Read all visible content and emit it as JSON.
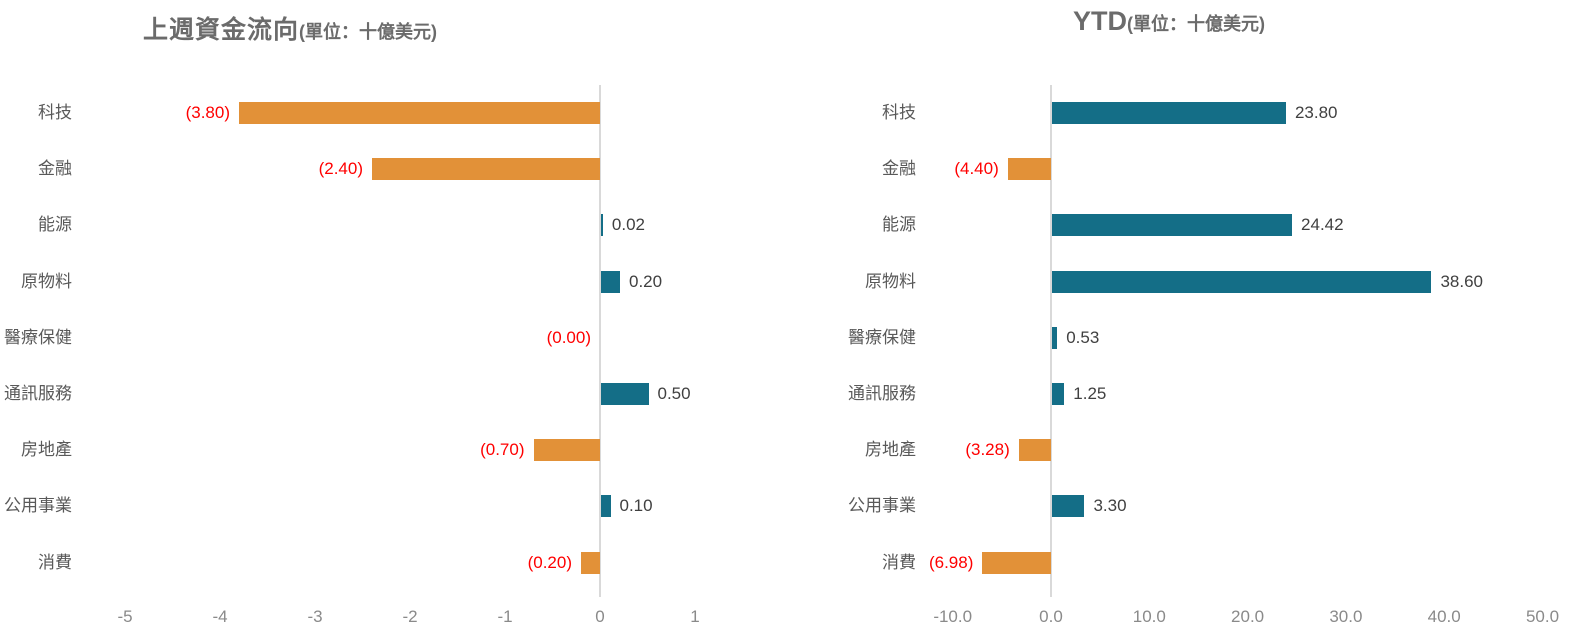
{
  "colors": {
    "bar_positive": "#146e87",
    "bar_negative": "#e29138",
    "negative_value_text": "#ff0000",
    "positive_value_text": "#404040",
    "zero_line": "#d9d9d9",
    "category_text": "#595959",
    "axis_text": "#8a8a8a",
    "title_text": "#6b6b6b"
  },
  "chart_data": [
    {
      "type": "bar",
      "orientation": "horizontal",
      "title": "上週資金流向",
      "title_unit": "(單位：十億美元)",
      "legend": "none",
      "grid": "zero-line-only",
      "categories": [
        "科技",
        "金融",
        "能源",
        "原物料",
        "醫療保健",
        "通訊服務",
        "房地產",
        "公用事業",
        "消費"
      ],
      "values": [
        -3.8,
        -2.4,
        0.02,
        0.2,
        -0.0,
        0.5,
        -0.7,
        0.1,
        -0.2
      ],
      "value_labels": [
        "(3.80)",
        "(2.40)",
        "0.02",
        "0.20",
        "(0.00)",
        "0.50",
        "(0.70)",
        "0.10",
        "(0.20)"
      ],
      "xtick_values": [
        -5,
        -4,
        -3,
        -2,
        -1,
        0,
        1
      ],
      "xtick_labels": [
        "-5",
        "-4",
        "-3",
        "-2",
        "-1",
        "0",
        "1"
      ],
      "xlim": [
        -5.35,
        1.35
      ]
    },
    {
      "type": "bar",
      "orientation": "horizontal",
      "title": "YTD",
      "title_unit": "(單位：十億美元)",
      "legend": "none",
      "grid": "zero-line-only",
      "categories": [
        "科技",
        "金融",
        "能源",
        "原物料",
        "醫療保健",
        "通訊服務",
        "房地產",
        "公用事業",
        "消費"
      ],
      "values": [
        23.8,
        -4.4,
        24.42,
        38.6,
        0.53,
        1.25,
        -3.28,
        3.3,
        -6.98
      ],
      "value_labels": [
        "23.80",
        "(4.40)",
        "24.42",
        "38.60",
        "0.53",
        "1.25",
        "(3.28)",
        "3.30",
        "(6.98)"
      ],
      "xtick_values": [
        -10,
        0,
        10,
        20,
        30,
        40,
        50
      ],
      "xtick_labels": [
        "-10.0",
        "0.0",
        "10.0",
        "20.0",
        "30.0",
        "40.0",
        "50.0"
      ],
      "xlim": [
        -15.0,
        53.5
      ]
    }
  ]
}
